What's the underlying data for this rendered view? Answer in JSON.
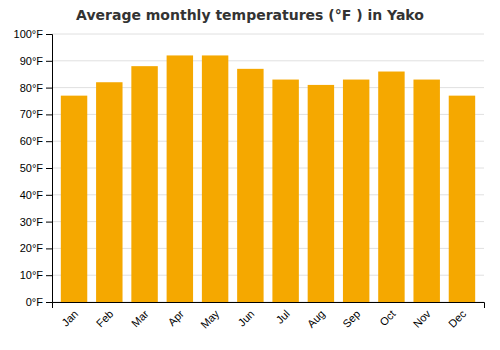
{
  "chart_data": {
    "type": "bar",
    "title": "Average monthly temperatures (°F ) in Yako",
    "categories": [
      "Jan",
      "Feb",
      "Mar",
      "Apr",
      "May",
      "Jun",
      "Jul",
      "Aug",
      "Sep",
      "Oct",
      "Nov",
      "Dec"
    ],
    "values": [
      77,
      82,
      88,
      92,
      92,
      87,
      83,
      81,
      83,
      86,
      83,
      77
    ],
    "color": "#F5A800",
    "ylim": [
      0,
      100
    ],
    "yticks": [
      {
        "value": 0,
        "label": "0°F"
      },
      {
        "value": 10,
        "label": "10°F"
      },
      {
        "value": 20,
        "label": "20°F"
      },
      {
        "value": 30,
        "label": "30°F"
      },
      {
        "value": 40,
        "label": "40°F"
      },
      {
        "value": 50,
        "label": "50°F"
      },
      {
        "value": 60,
        "label": "60°F"
      },
      {
        "value": 70,
        "label": "70°F"
      },
      {
        "value": 80,
        "label": "80°F"
      },
      {
        "value": 90,
        "label": "90°F"
      },
      {
        "value": 100,
        "label": "100°F"
      }
    ],
    "grid": true
  }
}
